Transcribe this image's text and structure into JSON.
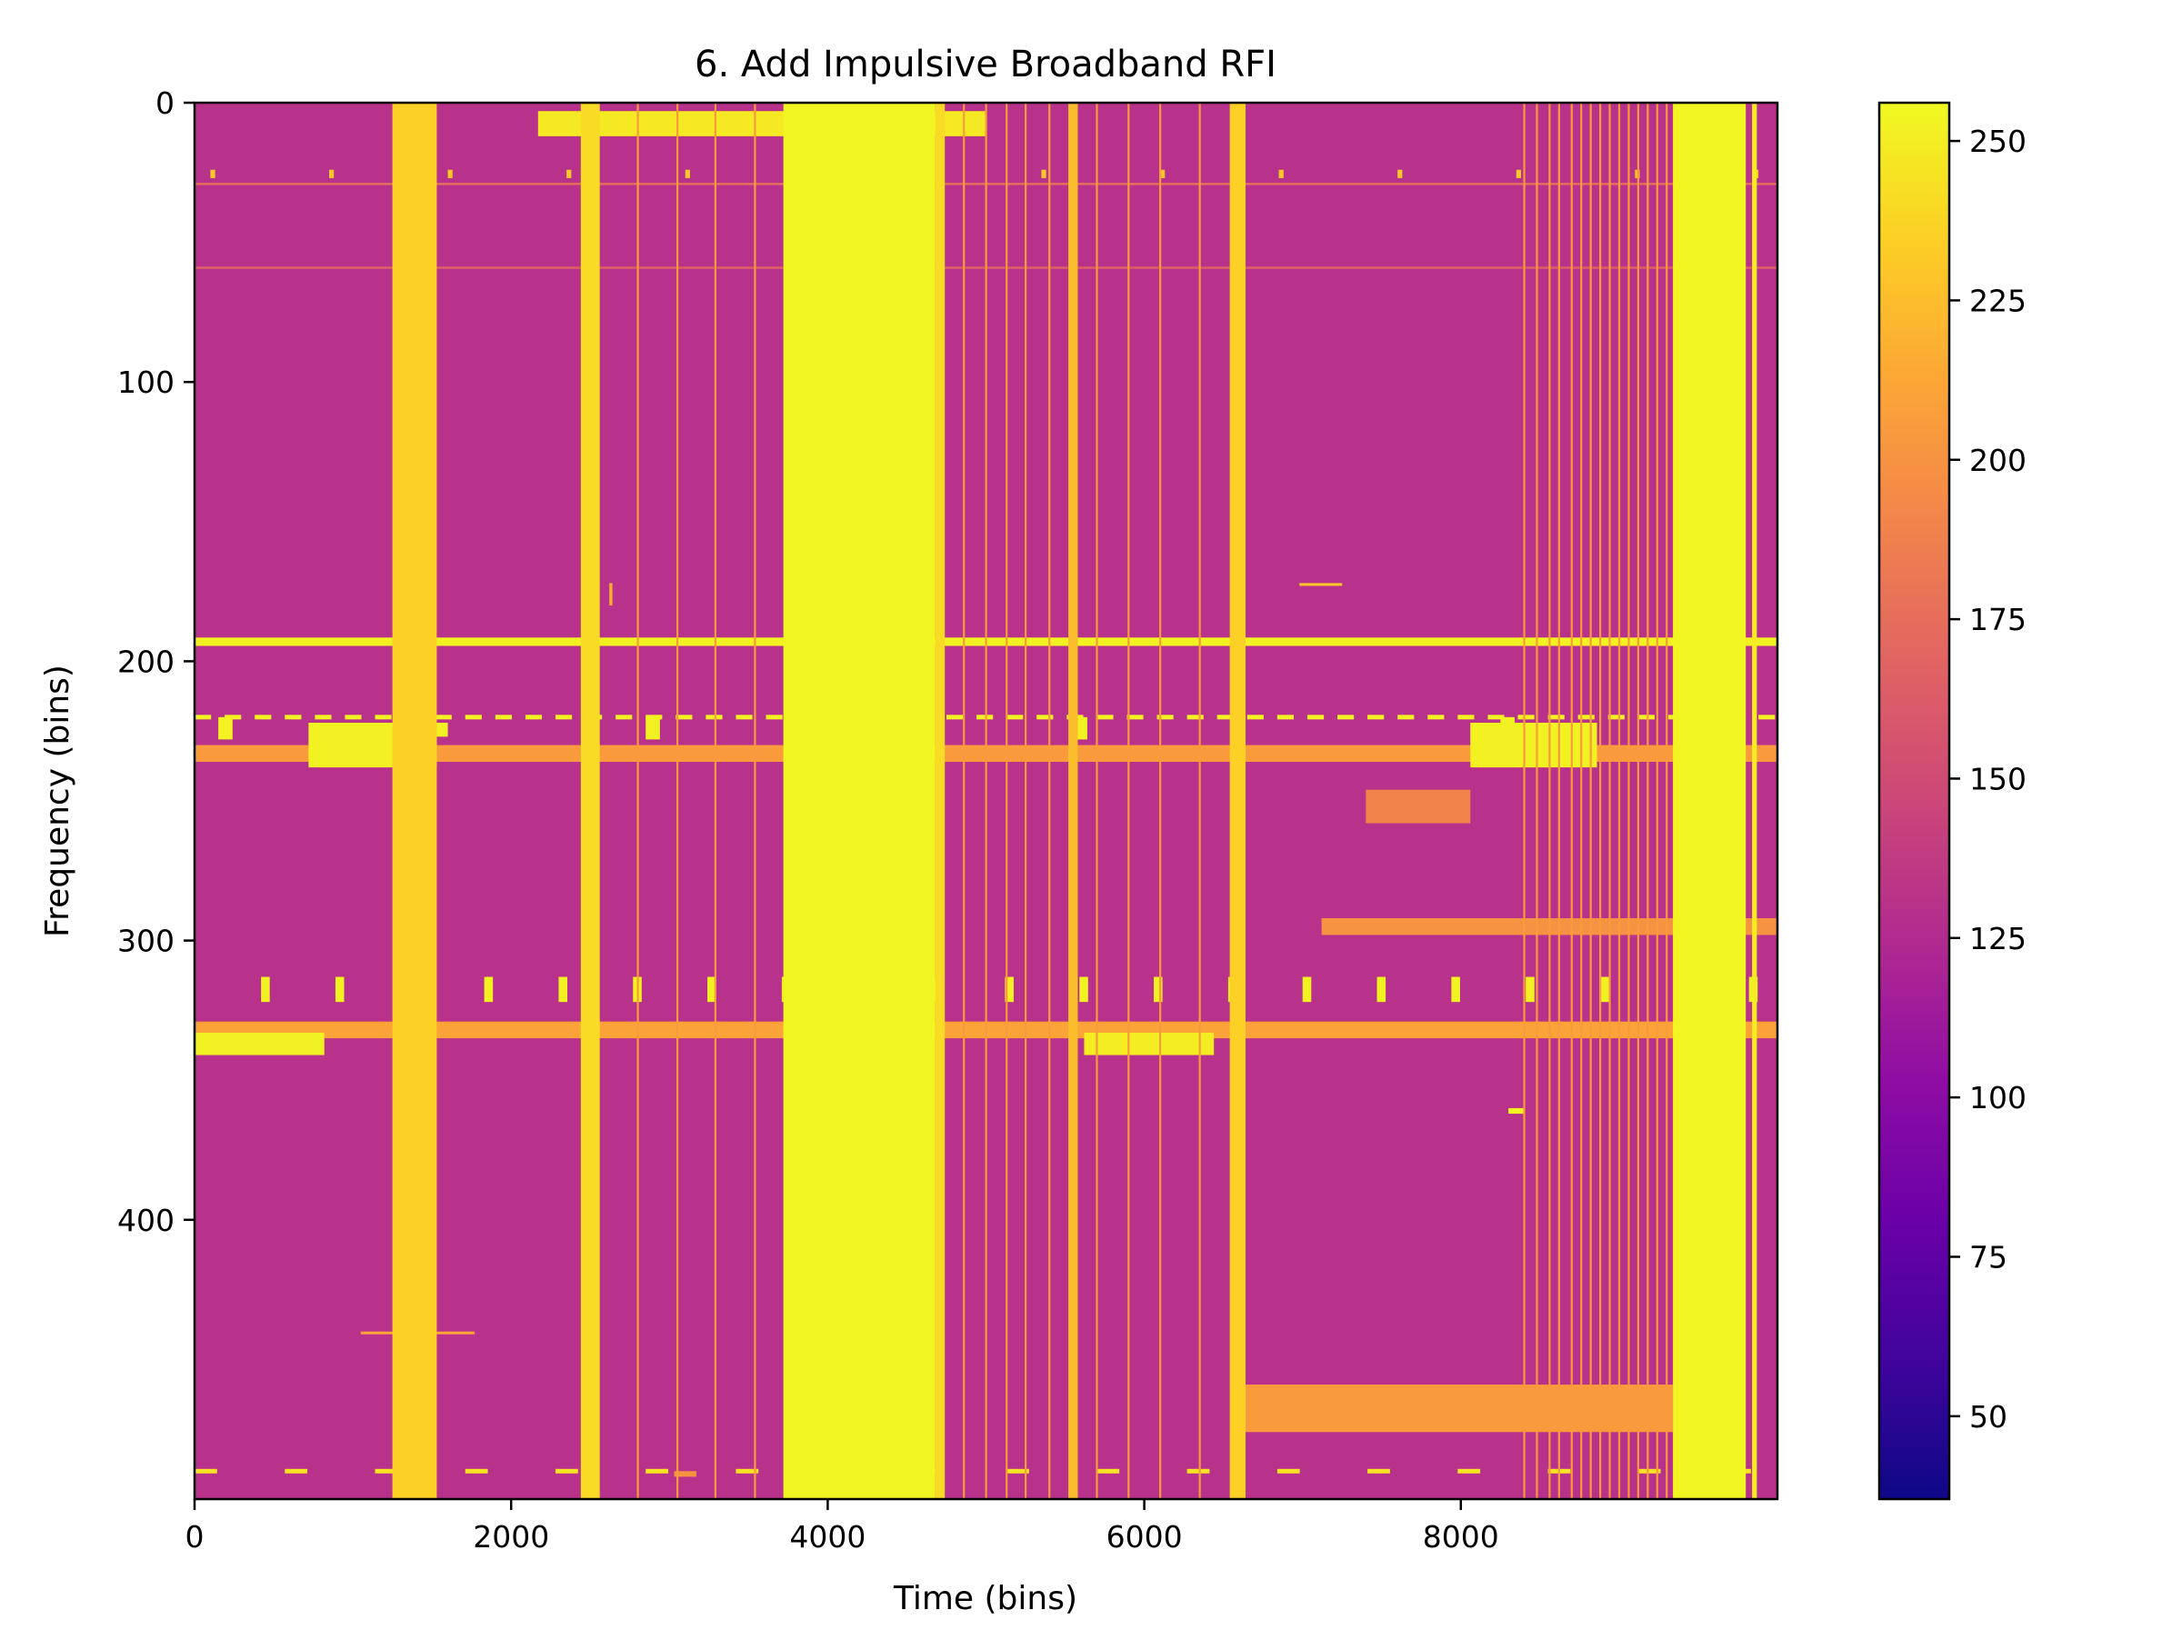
{
  "chart_data": {
    "type": "heatmap",
    "title": "6. Add Impulsive Broadband RFI",
    "xlabel": "Time (bins)",
    "ylabel": "Frequency (bins)",
    "xlim": [
      0,
      10000
    ],
    "ylim": [
      500,
      0
    ],
    "x_ticks": [
      0,
      2000,
      4000,
      6000,
      8000
    ],
    "x_tick_labels": [
      "0",
      "2000",
      "4000",
      "6000",
      "8000"
    ],
    "y_ticks": [
      0,
      100,
      200,
      300,
      400
    ],
    "y_tick_labels": [
      "0",
      "100",
      "200",
      "300",
      "400"
    ],
    "colormap": "plasma",
    "background_level": 130,
    "colorbar": {
      "range": [
        37,
        256
      ],
      "ticks": [
        50,
        75,
        100,
        125,
        150,
        175,
        200,
        225,
        250
      ],
      "tick_labels": [
        "50",
        "75",
        "100",
        "125",
        "150",
        "175",
        "200",
        "225",
        "250"
      ]
    },
    "broadband_impulses": [
      {
        "t0": 1250,
        "t1": 1530,
        "level": 235
      },
      {
        "t0": 2440,
        "t1": 2560,
        "level": 240
      },
      {
        "t0": 3720,
        "t1": 4680,
        "level": 254
      },
      {
        "t0": 4680,
        "t1": 4740,
        "level": 240
      },
      {
        "t0": 5520,
        "t1": 5580,
        "level": 225
      },
      {
        "t0": 6540,
        "t1": 6640,
        "level": 235
      },
      {
        "t0": 9340,
        "t1": 9800,
        "level": 254
      },
      {
        "t0": 9840,
        "t1": 9870,
        "level": 250
      }
    ],
    "thin_impulses_time": [
      2800,
      3050,
      3290,
      3540,
      4860,
      5000,
      5130,
      5250,
      5400,
      5700,
      5900,
      6100,
      6350,
      8400,
      8480,
      8560,
      8620,
      8700,
      8760,
      8820,
      8880,
      8940,
      9000,
      9060,
      9120,
      9180,
      9240,
      9300
    ],
    "narrowband_lines": [
      {
        "f": 193,
        "t0": 0,
        "t1": 10000,
        "level": 252,
        "width": 3
      },
      {
        "f": 233,
        "t0": 0,
        "t1": 10000,
        "level": 205,
        "width": 6
      },
      {
        "f": 332,
        "t0": 0,
        "t1": 10000,
        "level": 210,
        "width": 6
      },
      {
        "f": 29,
        "t0": 0,
        "t1": 10000,
        "level": 175,
        "width": 1
      },
      {
        "f": 59,
        "t0": 0,
        "t1": 10000,
        "level": 165,
        "width": 1
      }
    ],
    "dashed_lines": [
      {
        "f": 220,
        "level": 252,
        "dash_period": 190,
        "dash_duty": 0.55
      },
      {
        "f": 490,
        "level": 245,
        "dash_period": 570,
        "dash_duty": 0.25
      }
    ],
    "periodic_pulses": [
      {
        "f0": 313,
        "f1": 322,
        "t_start": 420,
        "t_period": 470,
        "width": 55,
        "level": 252
      },
      {
        "f0": 24,
        "f1": 27,
        "t_start": 100,
        "t_period": 750,
        "width": 30,
        "level": 230
      },
      {
        "f0": 220,
        "f1": 228,
        "t_start": 150,
        "t_period": 2700,
        "width": 90,
        "level": 252
      }
    ],
    "bursts": [
      {
        "t0": 2170,
        "t1": 5000,
        "f0": 3,
        "f1": 12,
        "level": 248
      },
      {
        "t0": 720,
        "t1": 1530,
        "f0": 222,
        "f1": 238,
        "level": 252
      },
      {
        "t0": 1530,
        "t1": 1600,
        "f0": 222,
        "f1": 227,
        "level": 252
      },
      {
        "t0": 8060,
        "t1": 8860,
        "f0": 222,
        "f1": 238,
        "level": 252
      },
      {
        "t0": 0,
        "t1": 820,
        "f0": 333,
        "f1": 341,
        "level": 252
      },
      {
        "t0": 5620,
        "t1": 6440,
        "f0": 333,
        "f1": 341,
        "level": 250
      },
      {
        "t0": 7400,
        "t1": 8060,
        "f0": 246,
        "f1": 258,
        "level": 190
      },
      {
        "t0": 7120,
        "t1": 10000,
        "f0": 292,
        "f1": 298,
        "level": 200
      },
      {
        "t0": 6640,
        "t1": 9340,
        "f0": 459,
        "f1": 476,
        "level": 205
      },
      {
        "t0": 6980,
        "t1": 7250,
        "f0": 172,
        "f1": 173,
        "level": 230
      },
      {
        "t0": 1050,
        "t1": 1770,
        "f0": 440,
        "f1": 441,
        "level": 210
      },
      {
        "t0": 2620,
        "t1": 2640,
        "f0": 172,
        "f1": 180,
        "level": 215
      },
      {
        "t0": 8300,
        "t1": 8400,
        "f0": 360,
        "f1": 362,
        "level": 252
      },
      {
        "t0": 3030,
        "t1": 3170,
        "f0": 490,
        "f1": 492,
        "level": 200
      }
    ]
  }
}
